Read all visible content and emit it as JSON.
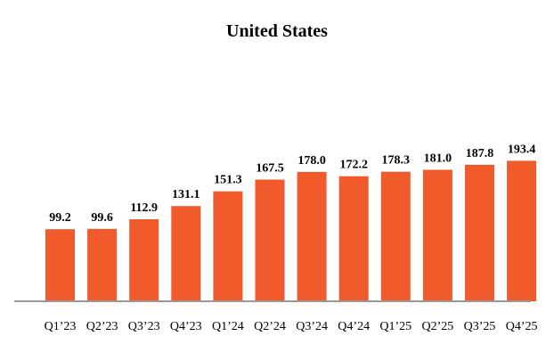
{
  "chart_data": {
    "type": "bar",
    "title": "United States",
    "xlabel": "",
    "ylabel": "",
    "categories": [
      "Q1’23",
      "Q2’23",
      "Q3’23",
      "Q4’23",
      "Q1’24",
      "Q2’24",
      "Q3’24",
      "Q4’24",
      "Q1’25",
      "Q2’25",
      "Q3’25",
      "Q4’25"
    ],
    "values": [
      99.2,
      99.6,
      112.9,
      131.1,
      151.3,
      167.5,
      178.0,
      172.2,
      178.3,
      181.0,
      187.8,
      193.4
    ],
    "value_labels": [
      "99.2",
      "99.6",
      "112.9",
      "131.1",
      "151.3",
      "167.5",
      "178.0",
      "172.2",
      "178.3",
      "181.0",
      "187.8",
      "193.4"
    ],
    "ylim": [
      0,
      225
    ],
    "grid": false,
    "legend": "none",
    "bar_color": "#F15A2B",
    "axis_color": "#999999"
  }
}
